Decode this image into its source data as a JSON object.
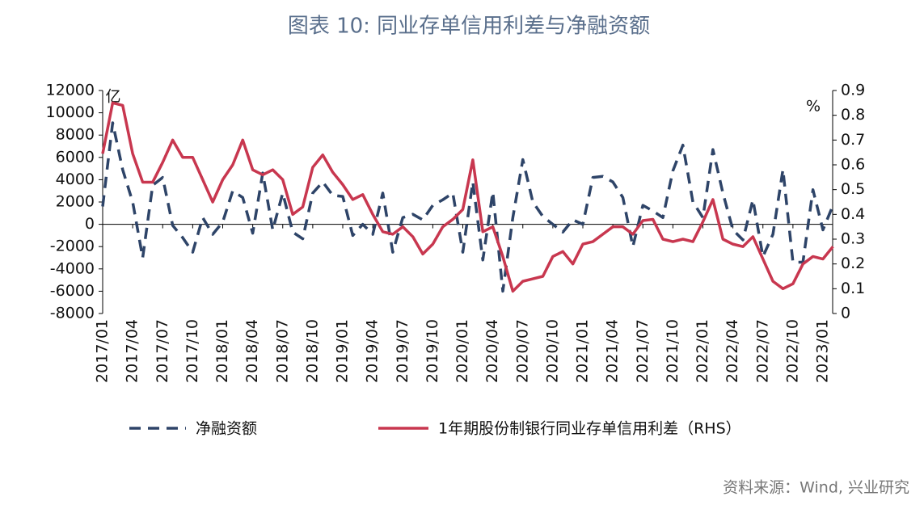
{
  "chart_data": {
    "type": "line",
    "title": "图表 10: 同业存单信用利差与净融资额",
    "y_unit": "亿",
    "y2_unit": "%",
    "source": "资料来源：Wind, 兴业研究",
    "categories": [
      "2017/01",
      null,
      null,
      "2017/04",
      null,
      null,
      "2017/07",
      null,
      null,
      "2017/10",
      null,
      null,
      "2018/01",
      null,
      null,
      "2018/04",
      null,
      null,
      "2018/07",
      null,
      null,
      "2018/10",
      null,
      null,
      "2019/01",
      null,
      null,
      "2019/04",
      null,
      null,
      "2019/07",
      null,
      null,
      "2019/10",
      null,
      null,
      "2020/01",
      null,
      null,
      "2020/04",
      null,
      null,
      "2020/07",
      null,
      null,
      "2020/10",
      null,
      null,
      "2021/01",
      null,
      null,
      "2021/04",
      null,
      null,
      "2021/07",
      null,
      null,
      "2021/10",
      null,
      null,
      "2022/01",
      null,
      null,
      "2022/04",
      null,
      null,
      "2022/07",
      null,
      null,
      "2022/10",
      null,
      null,
      "2023/01",
      null
    ],
    "series": [
      {
        "name": "净融资额",
        "color": "#2e4468",
        "dash": true,
        "axis": "y",
        "values": [
          1600,
          9100,
          4900,
          2000,
          -3000,
          3500,
          4200,
          -100,
          -1200,
          -2500,
          600,
          -900,
          200,
          3000,
          2400,
          -800,
          4600,
          -500,
          2800,
          -700,
          -1300,
          2800,
          3800,
          2600,
          2500,
          -1000,
          0,
          -900,
          2800,
          -2500,
          600,
          900,
          400,
          1700,
          2200,
          2800,
          -2500,
          3800,
          -3200,
          2900,
          -6000,
          600,
          5800,
          2000,
          700,
          0,
          -700,
          400,
          0,
          4200,
          4300,
          3800,
          2400,
          -2000,
          1700,
          1200,
          600,
          4800,
          7100,
          2000,
          600,
          6700,
          2800,
          -500,
          -1400,
          2200,
          -2900,
          -900,
          4900,
          -3400,
          -3400,
          3100,
          -500,
          1700
        ]
      },
      {
        "name": "1年期股份制银行同业存单信用利差（RHS）",
        "color": "#c8374f",
        "dash": false,
        "axis": "y2",
        "values": [
          0.645,
          0.85,
          0.84,
          0.645,
          0.53,
          0.53,
          0.61,
          0.7,
          0.63,
          0.63,
          0.54,
          0.45,
          0.54,
          0.6,
          0.7,
          0.58,
          0.56,
          0.58,
          0.54,
          0.4,
          0.43,
          0.59,
          0.64,
          0.57,
          0.52,
          0.46,
          0.48,
          0.4,
          0.33,
          0.32,
          0.35,
          0.31,
          0.24,
          0.28,
          0.35,
          0.38,
          0.42,
          0.62,
          0.33,
          0.35,
          0.23,
          0.09,
          0.13,
          0.14,
          0.15,
          0.23,
          0.25,
          0.2,
          0.28,
          0.29,
          0.32,
          0.35,
          0.35,
          0.32,
          0.375,
          0.38,
          0.3,
          0.29,
          0.3,
          0.29,
          0.37,
          0.46,
          0.3,
          0.28,
          0.27,
          0.31,
          0.22,
          0.13,
          0.1,
          0.12,
          0.2,
          0.23,
          0.22,
          0.27
        ]
      }
    ],
    "ylim": [
      -8000,
      12000
    ],
    "yticks": [
      -8000,
      -6000,
      -4000,
      -2000,
      0,
      2000,
      4000,
      6000,
      8000,
      10000,
      12000
    ],
    "y2lim": [
      0,
      0.9
    ],
    "y2ticks": [
      0,
      0.1,
      0.2,
      0.3,
      0.4,
      0.5,
      0.6,
      0.7,
      0.8,
      0.9
    ]
  }
}
